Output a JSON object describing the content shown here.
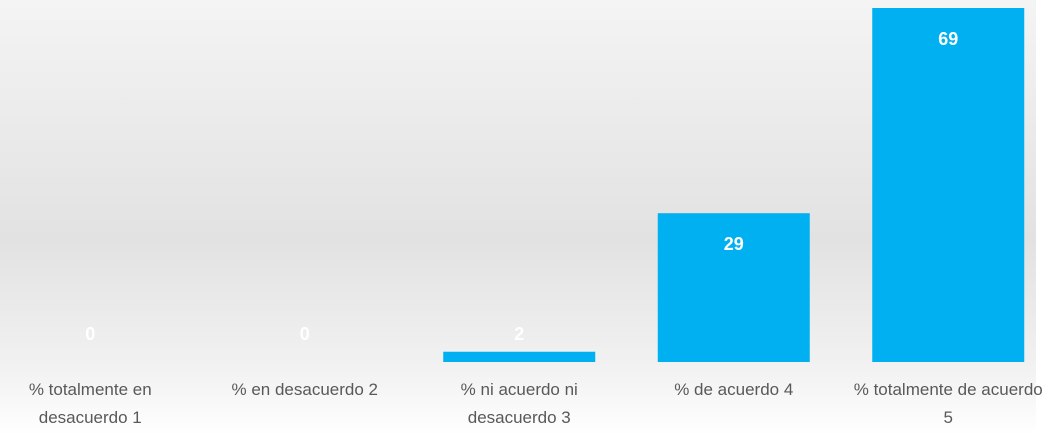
{
  "chart_data": {
    "type": "bar",
    "categories": [
      "% totalmente en desacuerdo 1",
      "% en desacuerdo 2",
      "% ni acuerdo ni desacuerdo 3",
      "% de acuerdo 4",
      "% totalmente de acuerdo 5"
    ],
    "values": [
      0,
      0,
      2,
      29,
      69
    ],
    "color": "#00b0f0"
  }
}
